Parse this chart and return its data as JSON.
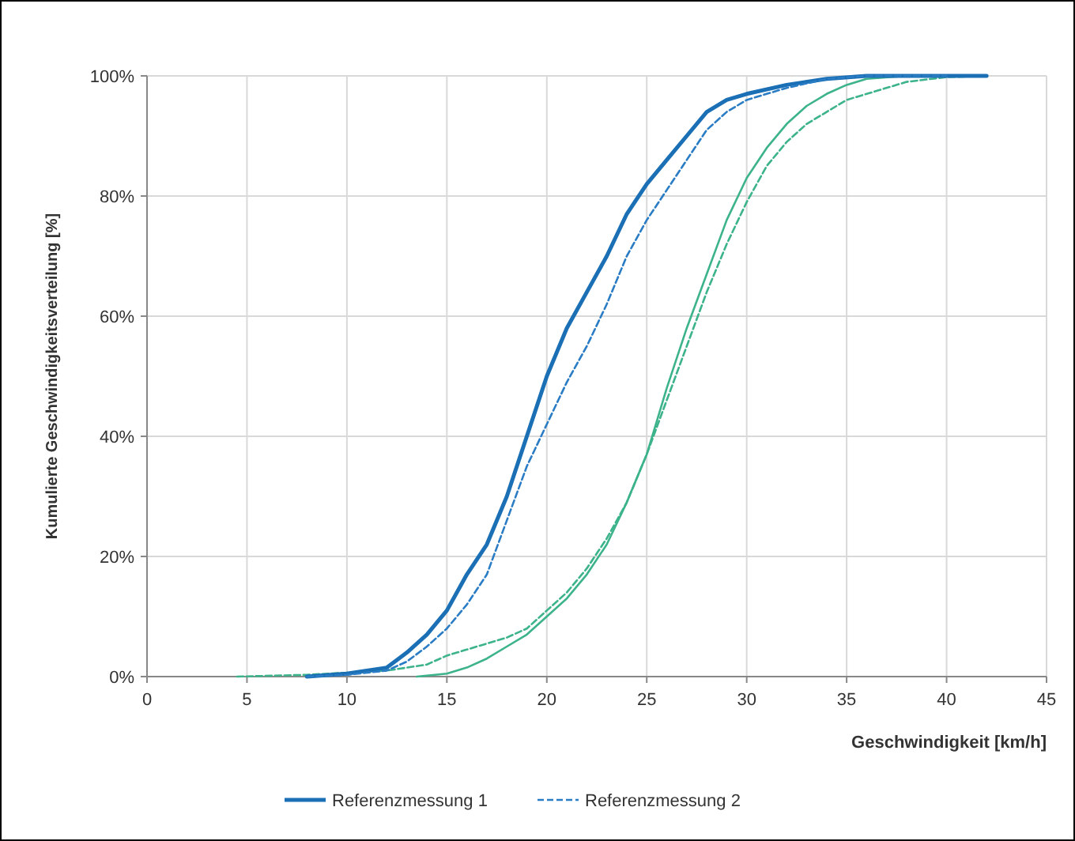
{
  "chart_data": {
    "type": "line",
    "xlabel": "Geschwindigkeit [km/h]",
    "ylabel": "Kumulierte Geschwindigkeitsverteilung [%]",
    "xlim": [
      0,
      45
    ],
    "xticks": [
      0,
      5,
      10,
      15,
      20,
      25,
      30,
      35,
      40,
      45
    ],
    "ylim": [
      0,
      100
    ],
    "yticks": [
      {
        "value": 0,
        "label": "0%"
      },
      {
        "value": 20,
        "label": "20%"
      },
      {
        "value": 40,
        "label": "40%"
      },
      {
        "value": 60,
        "label": "60%"
      },
      {
        "value": 80,
        "label": "80%"
      },
      {
        "value": 100,
        "label": "100%"
      }
    ],
    "grid": true,
    "legend": "bottom",
    "series": [
      {
        "color": "#3cb38a",
        "line_style": "solid",
        "x": [
          13.5,
          15,
          16,
          17,
          18,
          19,
          20,
          21,
          22,
          23,
          24,
          25,
          26,
          27,
          28,
          29,
          30,
          31,
          32,
          33,
          34,
          35,
          36,
          38,
          42
        ],
        "values": [
          0,
          0.5,
          1.5,
          3,
          5,
          7,
          10,
          13,
          17,
          22,
          29,
          37,
          48,
          58,
          67,
          76,
          83,
          88,
          92,
          95,
          97,
          98.5,
          99.5,
          100,
          100
        ]
      },
      {
        "color": "#3cb38a",
        "line_style": "dashed",
        "x": [
          4.5,
          8,
          12,
          14,
          15,
          16,
          17,
          18,
          19,
          20,
          21,
          22,
          23,
          24,
          25,
          26,
          27,
          28,
          29,
          30,
          31,
          32,
          33,
          34,
          35,
          36,
          38,
          40,
          42
        ],
        "values": [
          0,
          0.3,
          1,
          2,
          3.5,
          4.5,
          5.5,
          6.5,
          8,
          11,
          14,
          18,
          23,
          29,
          37,
          46,
          55,
          64,
          72,
          79,
          85,
          89,
          92,
          94,
          96,
          97,
          99,
          99.8,
          100
        ]
      },
      {
        "name": "Referenzmessung 1",
        "color": "#1a6fb5",
        "line_style": "solid",
        "x": [
          8,
          10,
          12,
          13,
          14,
          15,
          16,
          17,
          18,
          19,
          20,
          21,
          22,
          23,
          24,
          25,
          26,
          27,
          28,
          29,
          30,
          32,
          34,
          36,
          42
        ],
        "values": [
          0,
          0.5,
          1.5,
          4,
          7,
          11,
          17,
          22,
          30,
          40,
          50,
          58,
          64,
          70,
          77,
          82,
          86,
          90,
          94,
          96,
          97,
          98.5,
          99.5,
          100,
          100
        ]
      },
      {
        "name": "Referenzmessung 2",
        "color": "#2a7cc4",
        "line_style": "dashed",
        "x": [
          8,
          10,
          12,
          13,
          14,
          15,
          16,
          17,
          18,
          19,
          20,
          21,
          22,
          23,
          24,
          25,
          26,
          27,
          28,
          29,
          30,
          32,
          34,
          36,
          40
        ],
        "values": [
          0,
          0.3,
          1,
          2.5,
          5,
          8,
          12,
          17,
          26,
          35,
          42,
          49,
          55,
          62,
          70,
          76,
          81,
          86,
          91,
          94,
          96,
          98,
          99.5,
          100,
          100
        ]
      }
    ]
  }
}
